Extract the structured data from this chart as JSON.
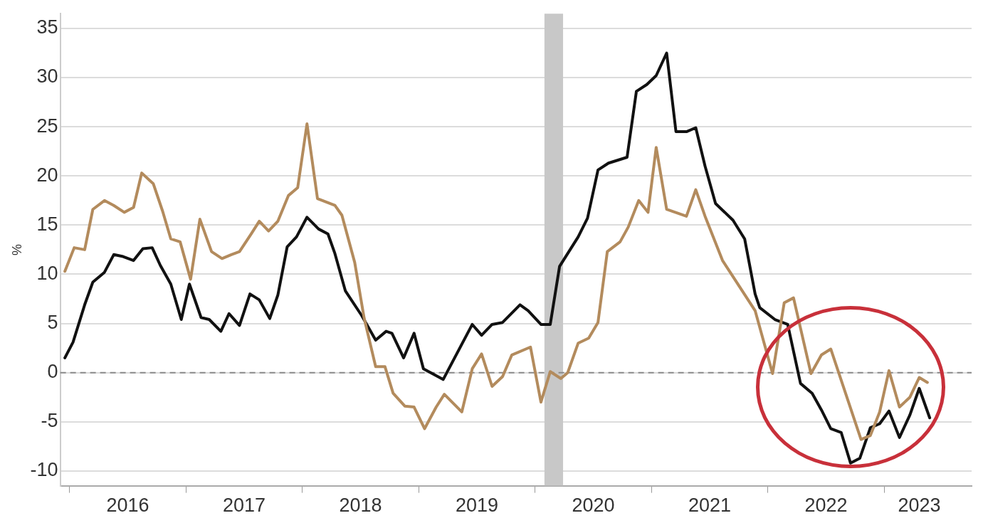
{
  "chart_data": {
    "type": "line",
    "ylabel": "%",
    "xlim": [
      2015.92,
      2023.75
    ],
    "xticks": [
      {
        "value": 2016,
        "label": null
      },
      {
        "value": 2016.5,
        "label": "2016"
      },
      {
        "value": 2017,
        "label": null
      },
      {
        "value": 2017.5,
        "label": "2017"
      },
      {
        "value": 2018,
        "label": null
      },
      {
        "value": 2018.5,
        "label": "2018"
      },
      {
        "value": 2019,
        "label": null
      },
      {
        "value": 2019.5,
        "label": "2019"
      },
      {
        "value": 2020,
        "label": null
      },
      {
        "value": 2020.5,
        "label": "2020"
      },
      {
        "value": 2021,
        "label": null
      },
      {
        "value": 2021.5,
        "label": "2021"
      },
      {
        "value": 2022,
        "label": null
      },
      {
        "value": 2022.5,
        "label": "2022"
      },
      {
        "value": 2023,
        "label": null
      },
      {
        "value": 2023.3,
        "label": "2023"
      }
    ],
    "ylim": [
      -11.5,
      36.5
    ],
    "yticks": [
      -10,
      -5,
      0,
      5,
      10,
      15,
      20,
      25,
      30,
      35
    ],
    "grid": "y",
    "legend": false,
    "marker": "none",
    "line_style": "solid",
    "ref_lines": [
      {
        "axis": "y",
        "value": 0,
        "label": null,
        "color": "#8a8a8a",
        "line_style": "dashed"
      }
    ],
    "bands": [
      {
        "axis": "x",
        "from": 2020.08,
        "to": 2020.24,
        "label": null,
        "color": "#c8c8c8"
      }
    ],
    "series": [
      {
        "color": "#b38b5d",
        "x": [
          2015.96,
          2016.04,
          2016.13,
          2016.2,
          2016.3,
          2016.38,
          2016.47,
          2016.55,
          2016.62,
          2016.72,
          2016.8,
          2016.87,
          2016.95,
          2017.04,
          2017.12,
          2017.22,
          2017.31,
          2017.39,
          2017.46,
          2017.56,
          2017.63,
          2017.71,
          2017.79,
          2017.88,
          2017.96,
          2018.04,
          2018.13,
          2018.28,
          2018.34,
          2018.45,
          2018.53,
          2018.63,
          2018.71,
          2018.78,
          2018.88,
          2018.96,
          2019.05,
          2019.15,
          2019.22,
          2019.37,
          2019.46,
          2019.54,
          2019.63,
          2019.72,
          2019.8,
          2019.96,
          2020.05,
          2020.13,
          2020.22,
          2020.28,
          2020.37,
          2020.46,
          2020.54,
          2020.62,
          2020.73,
          2020.8,
          2020.89,
          2020.97,
          2021.04,
          2021.13,
          2021.3,
          2021.38,
          2021.46,
          2021.61,
          2021.78,
          2021.89,
          2022.04,
          2022.14,
          2022.22,
          2022.37,
          2022.46,
          2022.54,
          2022.8,
          2022.88,
          2022.96,
          2023.04,
          2023.13,
          2023.22,
          2023.3,
          2023.37
        ],
        "values": [
          10.3,
          12.7,
          12.5,
          16.6,
          17.5,
          17.0,
          16.3,
          16.8,
          20.3,
          19.2,
          16.4,
          13.6,
          13.3,
          9.5,
          15.6,
          12.3,
          11.6,
          12.0,
          12.3,
          14.1,
          15.4,
          14.4,
          15.4,
          18.0,
          18.8,
          25.3,
          17.7,
          17.0,
          16.0,
          11.2,
          5.6,
          0.6,
          0.6,
          -2.1,
          -3.4,
          -3.5,
          -5.7,
          -3.5,
          -2.2,
          -4.0,
          0.4,
          1.9,
          -1.4,
          -0.4,
          1.8,
          2.6,
          -3.0,
          0.1,
          -0.6,
          0.0,
          3.0,
          3.5,
          5.1,
          12.3,
          13.3,
          14.8,
          17.5,
          16.3,
          22.9,
          16.6,
          15.9,
          18.6,
          15.9,
          11.4,
          8.3,
          6.3,
          -0.1,
          7.1,
          7.6,
          -0.1,
          1.8,
          2.4,
          -6.8,
          -6.4,
          -4.0,
          0.2,
          -3.5,
          -2.5,
          -0.5,
          -1.0
        ]
      },
      {
        "color": "#111111",
        "x": [
          2015.96,
          2016.03,
          2016.13,
          2016.2,
          2016.3,
          2016.38,
          2016.46,
          2016.55,
          2016.63,
          2016.71,
          2016.78,
          2016.87,
          2016.96,
          2017.03,
          2017.13,
          2017.2,
          2017.3,
          2017.37,
          2017.46,
          2017.55,
          2017.63,
          2017.72,
          2017.79,
          2017.87,
          2017.95,
          2018.04,
          2018.14,
          2018.22,
          2018.28,
          2018.37,
          2018.51,
          2018.63,
          2018.72,
          2018.77,
          2018.87,
          2018.96,
          2019.04,
          2019.21,
          2019.46,
          2019.54,
          2019.63,
          2019.72,
          2019.87,
          2019.94,
          2020.05,
          2020.13,
          2020.21,
          2020.37,
          2020.45,
          2020.54,
          2020.63,
          2020.79,
          2020.87,
          2020.96,
          2021.04,
          2021.13,
          2021.21,
          2021.3,
          2021.38,
          2021.46,
          2021.55,
          2021.7,
          2021.8,
          2021.89,
          2021.93,
          2022.06,
          2022.17,
          2022.28,
          2022.38,
          2022.46,
          2022.54,
          2022.63,
          2022.71,
          2022.79,
          2022.88,
          2022.96,
          2023.04,
          2023.13,
          2023.22,
          2023.3,
          2023.39
        ],
        "values": [
          1.5,
          3.1,
          6.9,
          9.2,
          10.2,
          12.0,
          11.8,
          11.4,
          12.6,
          12.7,
          10.9,
          9.0,
          5.4,
          9.0,
          5.6,
          5.4,
          4.2,
          6.0,
          4.8,
          8.0,
          7.4,
          5.5,
          7.9,
          12.8,
          13.8,
          15.8,
          14.6,
          14.1,
          12.1,
          8.3,
          5.8,
          3.3,
          4.2,
          4.0,
          1.5,
          4.0,
          0.4,
          -0.7,
          4.9,
          3.8,
          4.9,
          5.1,
          6.9,
          6.3,
          4.9,
          4.9,
          10.8,
          13.8,
          15.7,
          20.6,
          21.3,
          21.9,
          28.6,
          29.3,
          30.2,
          32.5,
          24.5,
          24.5,
          24.9,
          21.0,
          17.2,
          15.5,
          13.6,
          8.0,
          6.6,
          5.4,
          4.9,
          -1.1,
          -2.1,
          -3.8,
          -5.7,
          -6.1,
          -9.2,
          -8.7,
          -5.6,
          -5.2,
          -3.9,
          -6.6,
          -4.3,
          -1.6,
          -4.6
        ]
      }
    ]
  }
}
